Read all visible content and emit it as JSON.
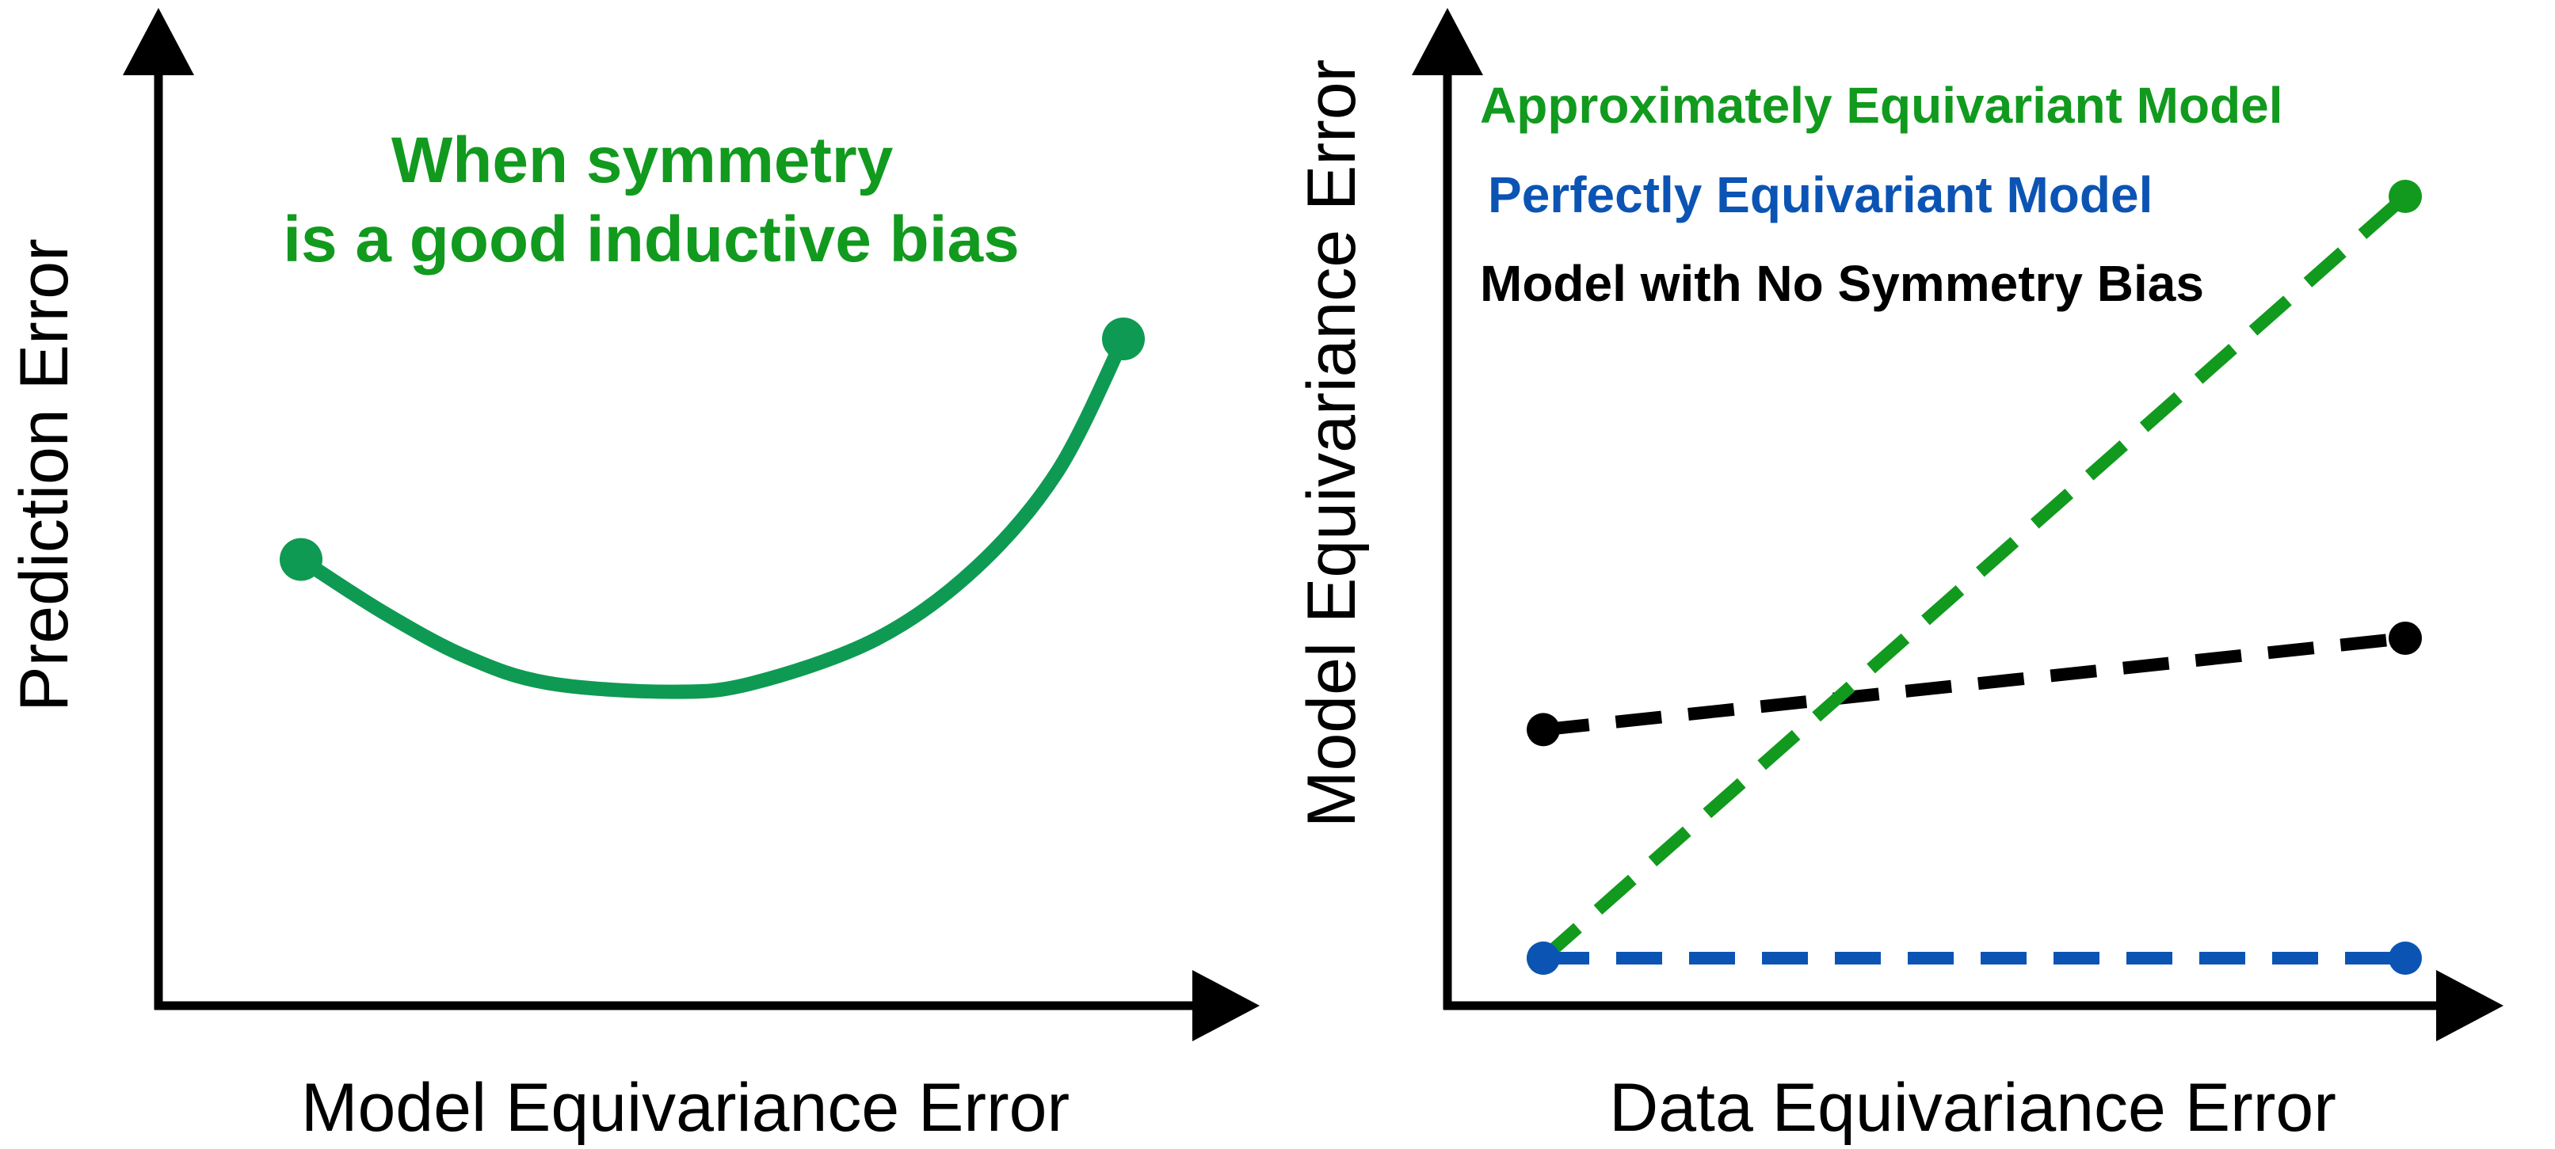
{
  "chart_data": [
    {
      "type": "line",
      "xlabel": "Model Equivariance Error",
      "ylabel": "Prediction Error",
      "annotation": {
        "lines": [
          "When symmetry",
          "is a good inductive bias"
        ],
        "color": "#119a1e"
      },
      "series": [
        {
          "color": "#0e9a52",
          "style": "solid",
          "x": [
            0.0,
            0.1,
            0.2,
            0.3,
            0.45,
            0.55,
            0.7,
            0.82,
            0.92,
            1.0
          ],
          "y": [
            0.5,
            0.38,
            0.28,
            0.22,
            0.2,
            0.22,
            0.32,
            0.48,
            0.7,
            1.0
          ],
          "endpoint_markers": true
        }
      ],
      "grid": false,
      "legend": false
    },
    {
      "type": "line",
      "xlabel": "Data Equivariance Error",
      "ylabel": "Model Equivariance Error",
      "legend": "top-left",
      "grid": false,
      "series": [
        {
          "name": "Approximately Equivariant Model",
          "color": "#119a1e",
          "style": "dashed",
          "x": [
            0,
            1
          ],
          "y": [
            0.0,
            1.0
          ]
        },
        {
          "name": "Perfectly Equivariant Model",
          "color": "#0c54b4",
          "style": "dashed",
          "x": [
            0,
            1
          ],
          "y": [
            0.0,
            0.0
          ]
        },
        {
          "name": "Model with No Symmetry Bias",
          "color": "#000000",
          "style": "dashed",
          "x": [
            0,
            1
          ],
          "y": [
            0.3,
            0.42
          ]
        }
      ]
    }
  ]
}
